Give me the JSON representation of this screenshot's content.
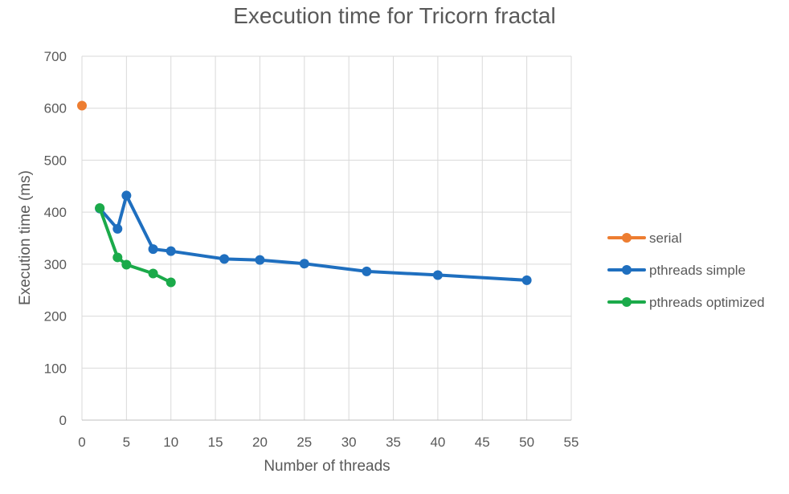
{
  "chart_data": {
    "type": "scatter",
    "title": "Execution time for Tricorn fractal",
    "xlabel": "Number of threads",
    "ylabel": "Execution time (ms)",
    "xlim": [
      0,
      55
    ],
    "ylim": [
      0,
      700
    ],
    "xticks": [
      0,
      5,
      10,
      15,
      20,
      25,
      30,
      35,
      40,
      45,
      50,
      55
    ],
    "yticks": [
      0,
      100,
      200,
      300,
      400,
      500,
      600,
      700
    ],
    "grid": true,
    "legend_position": "right",
    "series": [
      {
        "name": "serial",
        "color": "#ED7D31",
        "points": [
          [
            0,
            605
          ]
        ]
      },
      {
        "name": "pthreads simple",
        "color": "#1F6FBF",
        "points": [
          [
            2,
            407
          ],
          [
            4,
            368
          ],
          [
            5,
            432
          ],
          [
            8,
            329
          ],
          [
            10,
            325
          ],
          [
            16,
            310
          ],
          [
            20,
            308
          ],
          [
            25,
            301
          ],
          [
            32,
            286
          ],
          [
            40,
            279
          ],
          [
            50,
            269
          ]
        ]
      },
      {
        "name": "pthreads optimized",
        "color": "#1BAA4A",
        "points": [
          [
            2,
            408
          ],
          [
            4,
            313
          ],
          [
            5,
            299
          ],
          [
            8,
            282
          ],
          [
            10,
            265
          ]
        ]
      }
    ]
  }
}
